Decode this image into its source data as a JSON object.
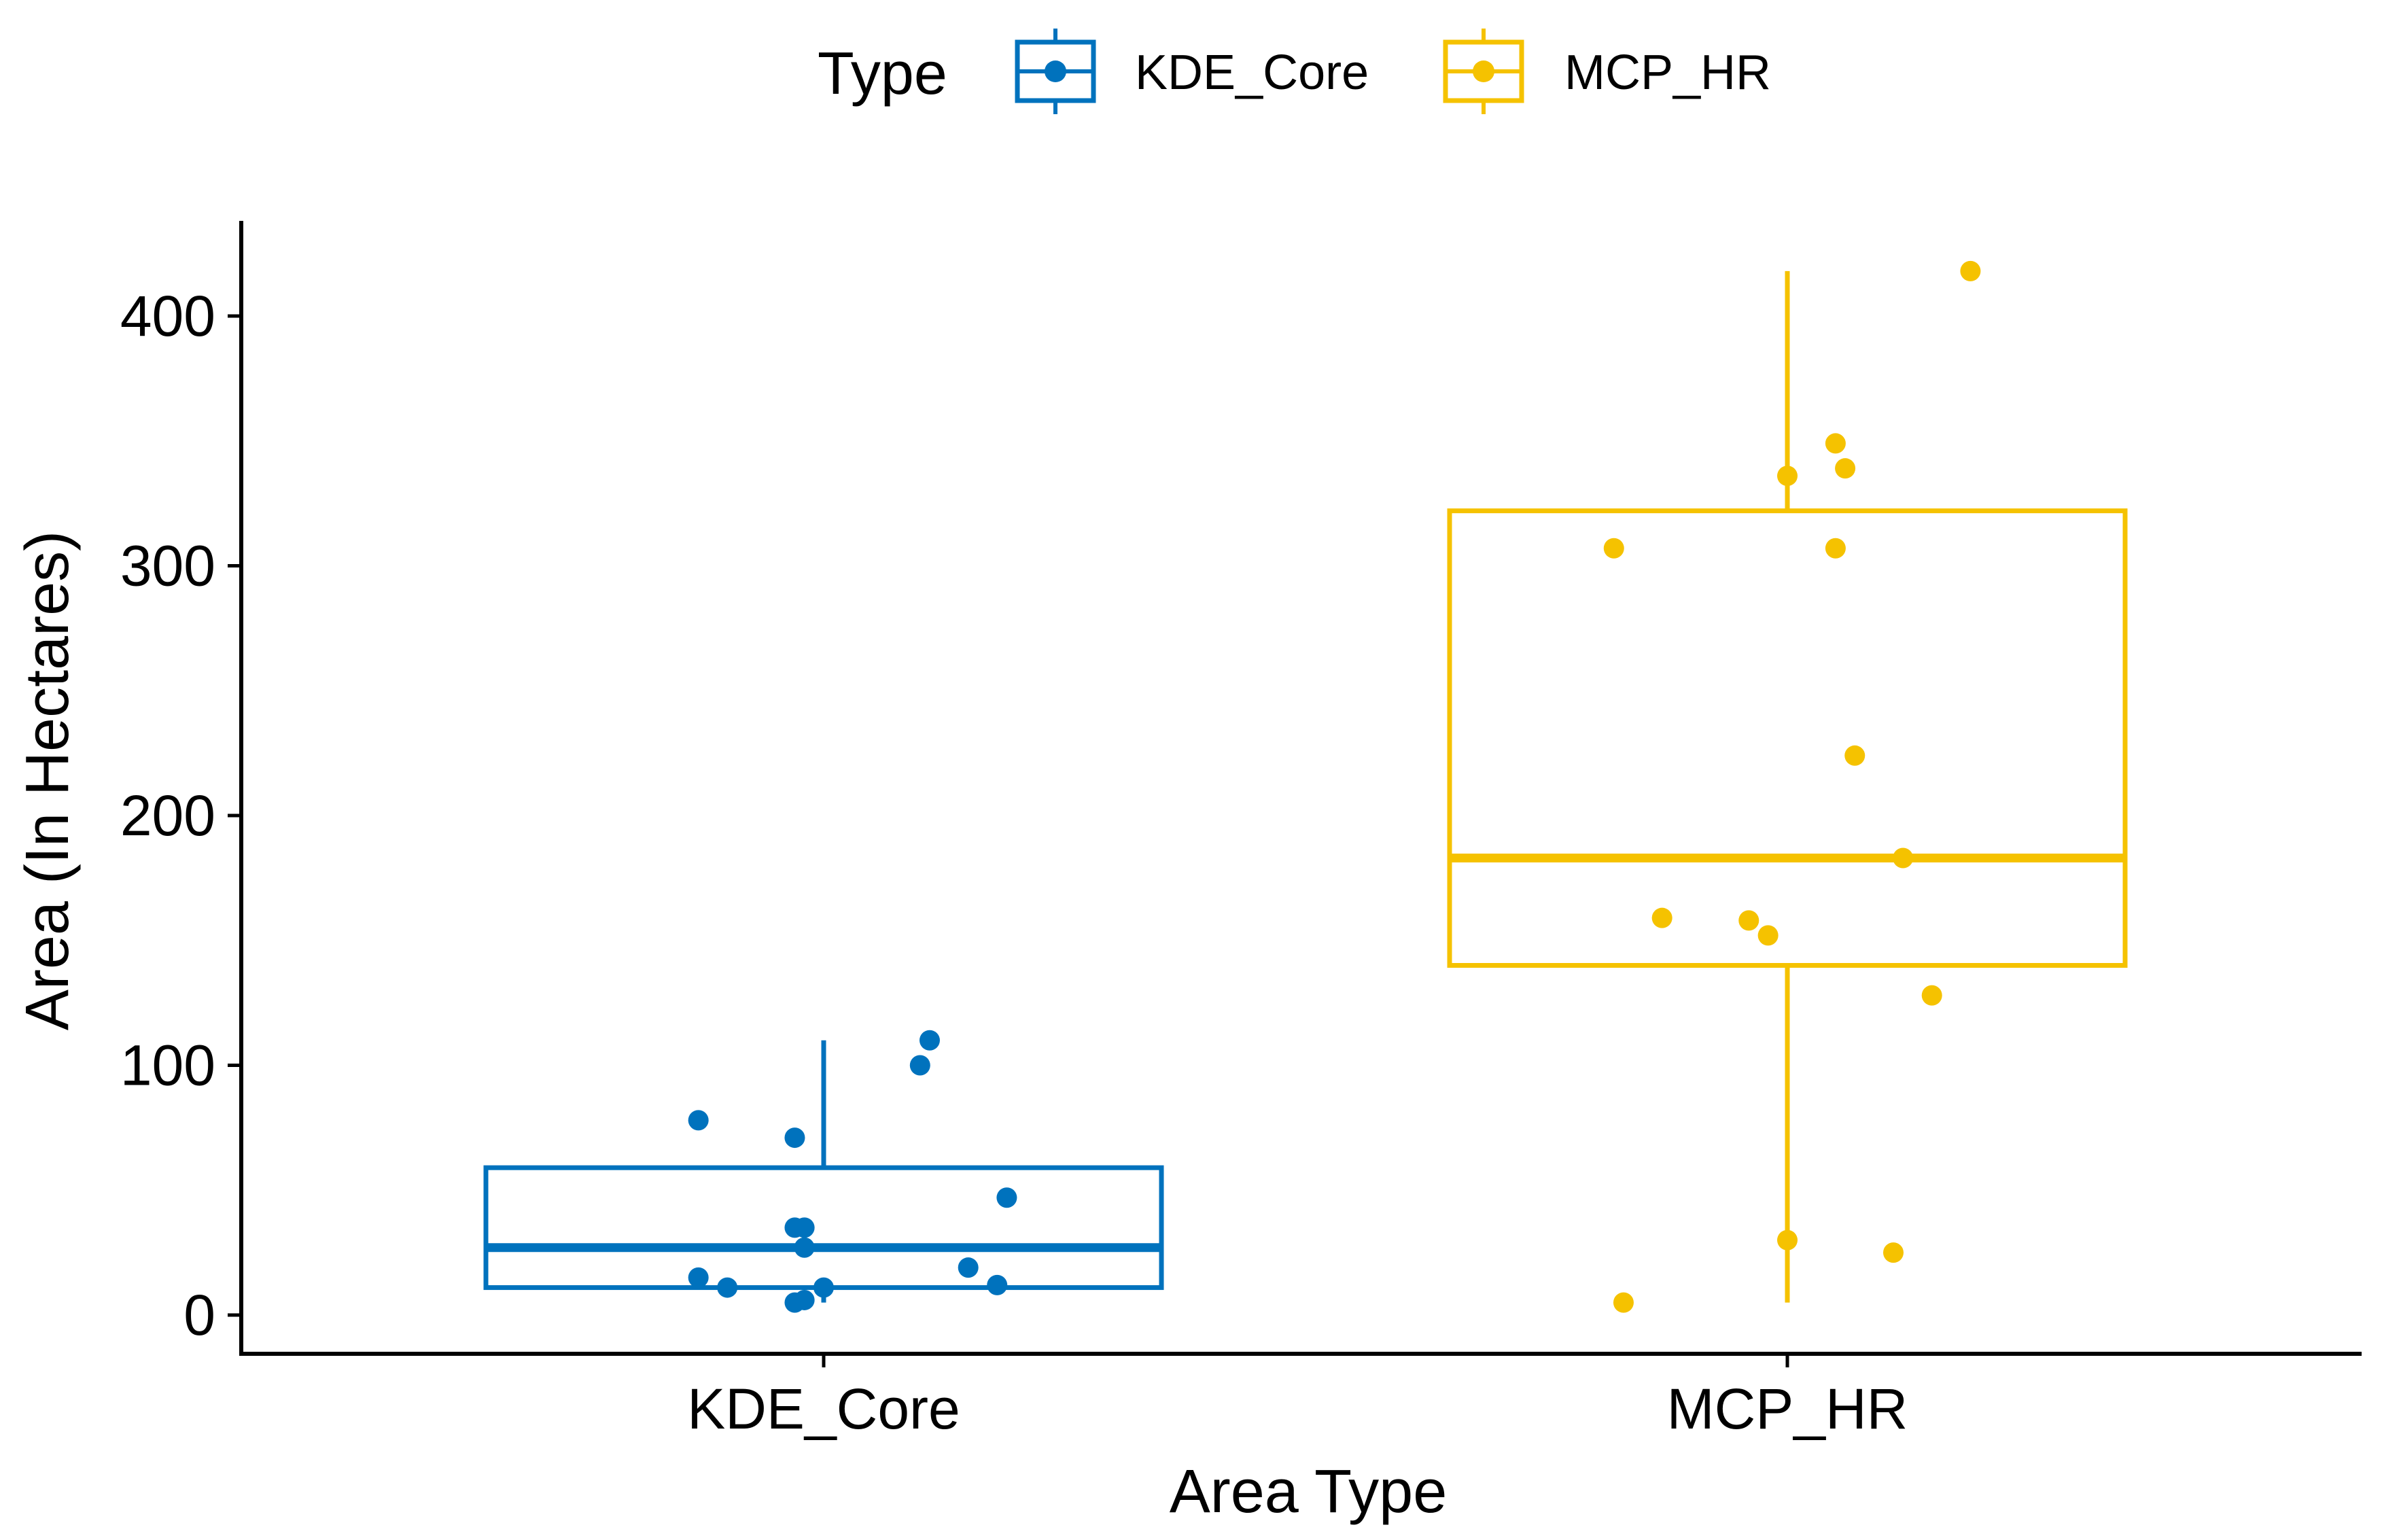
{
  "chart_data": {
    "type": "boxplot",
    "xlabel": "Area Type",
    "ylabel": "Area (In Hectares)",
    "ylim": [
      -15,
      440
    ],
    "yticks": [
      0,
      100,
      200,
      300,
      400
    ],
    "grid": false,
    "legend": {
      "title": "Type",
      "placement": "top",
      "entries": [
        "KDE_Core",
        "MCP_HR"
      ]
    },
    "categories": [
      "KDE_Core",
      "MCP_HR"
    ],
    "series": [
      {
        "name": "KDE_Core",
        "color": "#0072BD",
        "box": {
          "whisker_low": 5,
          "q1": 11,
          "median": 27,
          "q3": 59,
          "whisker_high": 110
        },
        "points": [
          {
            "jitter": -0.13,
            "y": 78
          },
          {
            "jitter": -0.03,
            "y": 71
          },
          {
            "jitter": 0.1,
            "y": 100
          },
          {
            "jitter": 0.11,
            "y": 110
          },
          {
            "jitter": 0.19,
            "y": 47
          },
          {
            "jitter": -0.03,
            "y": 35
          },
          {
            "jitter": -0.02,
            "y": 35
          },
          {
            "jitter": -0.02,
            "y": 27
          },
          {
            "jitter": -0.13,
            "y": 15
          },
          {
            "jitter": -0.1,
            "y": 11
          },
          {
            "jitter": 0.0,
            "y": 11
          },
          {
            "jitter": -0.03,
            "y": 5
          },
          {
            "jitter": -0.02,
            "y": 6
          },
          {
            "jitter": 0.15,
            "y": 19
          },
          {
            "jitter": 0.18,
            "y": 12
          }
        ]
      },
      {
        "name": "MCP_HR",
        "color": "#F5C200",
        "box": {
          "whisker_low": 5,
          "q1": 140,
          "median": 183,
          "q3": 322,
          "whisker_high": 418
        },
        "points": [
          {
            "jitter": 0.19,
            "y": 418
          },
          {
            "jitter": 0.05,
            "y": 349
          },
          {
            "jitter": 0.06,
            "y": 339
          },
          {
            "jitter": 0.0,
            "y": 336
          },
          {
            "jitter": -0.18,
            "y": 307
          },
          {
            "jitter": 0.05,
            "y": 307
          },
          {
            "jitter": 0.07,
            "y": 224
          },
          {
            "jitter": 0.12,
            "y": 183
          },
          {
            "jitter": -0.13,
            "y": 159
          },
          {
            "jitter": -0.04,
            "y": 158
          },
          {
            "jitter": -0.02,
            "y": 152
          },
          {
            "jitter": 0.15,
            "y": 128
          },
          {
            "jitter": 0.0,
            "y": 30
          },
          {
            "jitter": 0.11,
            "y": 25
          },
          {
            "jitter": -0.17,
            "y": 5
          }
        ]
      }
    ]
  }
}
